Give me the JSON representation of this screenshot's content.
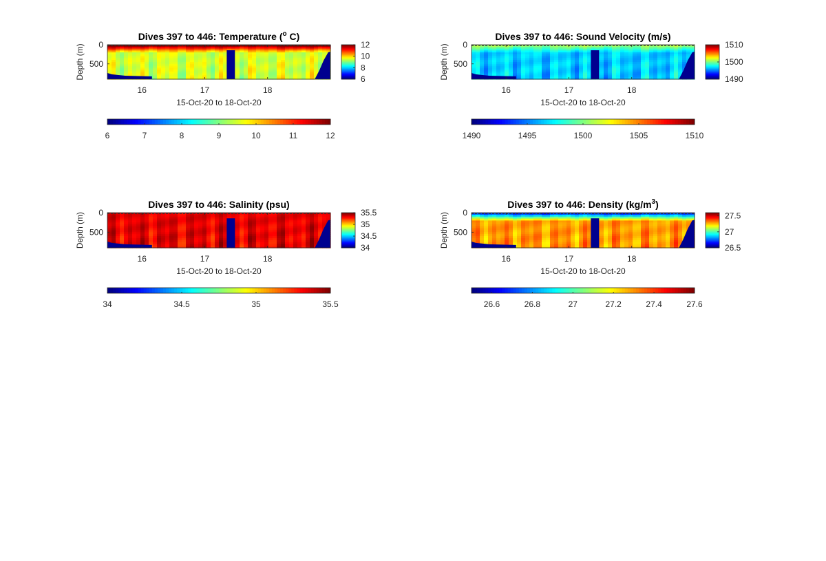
{
  "chart_data": [
    {
      "type": "heatmap",
      "variable": "temperature",
      "title_main": "Dives 397 to 446: Temperature (",
      "title_sup": "o",
      "title_tail": " C)",
      "xlabel": "15-Oct-20 to 18-Oct-20",
      "ylabel": "Depth (m)",
      "x_ticks": [
        "16",
        "17",
        "18"
      ],
      "y_ticks": [
        "0",
        "500"
      ],
      "xlim": [
        15.45,
        19.0
      ],
      "ylim_depth_m": [
        0,
        900
      ],
      "clim": [
        6,
        12
      ],
      "side_colorbar_ticks": [
        "12",
        "10",
        "8",
        "6"
      ],
      "bottom_colorbar_ticks": [
        "6",
        "7",
        "8",
        "9",
        "10",
        "11",
        "12"
      ],
      "surface_value": 12.0,
      "deep_value": 9.5,
      "colormap": "jet"
    },
    {
      "type": "heatmap",
      "variable": "sound_velocity",
      "title_main": "Dives 397 to 446: Sound Velocity (m/s)",
      "xlabel": "15-Oct-20 to 18-Oct-20",
      "ylabel": "Depth (m)",
      "x_ticks": [
        "16",
        "17",
        "18"
      ],
      "y_ticks": [
        "0",
        "500"
      ],
      "xlim": [
        15.45,
        19.0
      ],
      "ylim_depth_m": [
        0,
        900
      ],
      "clim": [
        1490,
        1510
      ],
      "side_colorbar_ticks": [
        "1510",
        "1500",
        "1490"
      ],
      "bottom_colorbar_ticks": [
        "1490",
        "1495",
        "1500",
        "1505",
        "1510"
      ],
      "surface_value": 1500.5,
      "deep_value": 1496.5,
      "colormap": "jet"
    },
    {
      "type": "heatmap",
      "variable": "salinity",
      "title_main": "Dives 397 to 446: Salinity (psu)",
      "xlabel": "15-Oct-20 to 18-Oct-20",
      "ylabel": "Depth (m)",
      "x_ticks": [
        "16",
        "17",
        "18"
      ],
      "y_ticks": [
        "0",
        "500"
      ],
      "xlim": [
        15.45,
        19.0
      ],
      "ylim_depth_m": [
        0,
        900
      ],
      "clim": [
        34,
        35.5
      ],
      "side_colorbar_ticks": [
        "35.5",
        "35",
        "34.5",
        "34"
      ],
      "bottom_colorbar_ticks": [
        "34",
        "34.5",
        "35",
        "35.5"
      ],
      "surface_value": 35.35,
      "deep_value": 35.35,
      "colormap": "jet"
    },
    {
      "type": "heatmap",
      "variable": "density",
      "title_main": "Dives 397 to 446: Density (kg/m",
      "title_sup": "3",
      "title_tail": ")",
      "xlabel": "15-Oct-20 to 18-Oct-20",
      "ylabel": "Depth (m)",
      "x_ticks": [
        "16",
        "17",
        "18"
      ],
      "y_ticks": [
        "0",
        "500"
      ],
      "xlim": [
        15.45,
        19.0
      ],
      "ylim_depth_m": [
        0,
        900
      ],
      "clim": [
        26.5,
        27.6
      ],
      "side_colorbar_ticks": [
        "27.5",
        "27",
        "26.5"
      ],
      "bottom_colorbar_ticks": [
        "26.6",
        "26.8",
        "27",
        "27.2",
        "27.4",
        "27.6"
      ],
      "surface_value": 26.7,
      "deep_value": 27.3,
      "colormap": "jet"
    }
  ],
  "colors": {
    "nodata": "#00008f",
    "axis": "#262626"
  }
}
